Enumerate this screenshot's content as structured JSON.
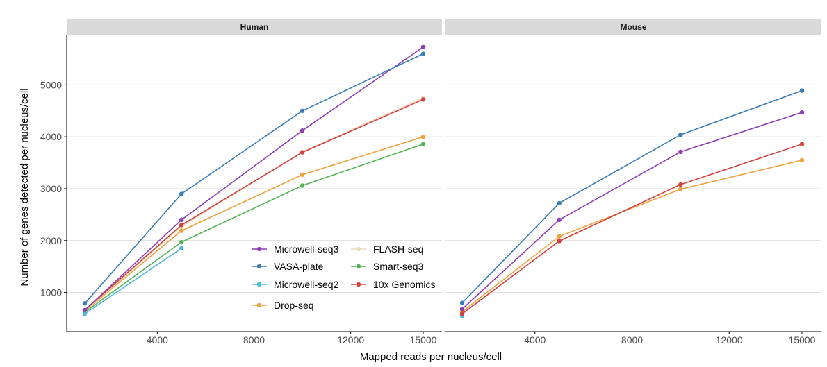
{
  "chart_data": {
    "type": "line",
    "xlabel": "Mapped reads per nucleus/cell",
    "ylabel": "Number of genes detected per nucleus/cell",
    "x_ticks": [
      4000,
      8000,
      12000,
      15000
    ],
    "y_ticks": [
      1000,
      2000,
      3000,
      4000,
      5000
    ],
    "xlim": [
      0,
      16000
    ],
    "ylim": [
      300,
      5950
    ],
    "grid": "horizontal",
    "legend": {
      "placement": "inside-left-panel",
      "columns": [
        [
          "Microwell-seq3",
          "VASA-plate",
          "Microwell-seq2",
          "Drop-seq"
        ],
        [
          "FLASH-seq",
          "Smart-seq3",
          "10x Genomics"
        ]
      ]
    },
    "colors": {
      "Microwell-seq3": "#8e3fb4",
      "VASA-plate": "#3a7db7",
      "Microwell-seq2": "#4db8d8",
      "Drop-seq": "#eda13a",
      "FLASH-seq": "#ecdcc0",
      "Smart-seq3": "#55b356",
      "10x Genomics": "#d3403e"
    },
    "panels": [
      {
        "title": "Human",
        "series": [
          {
            "name": "Smart-seq3",
            "x": [
              1000,
              5000,
              10000,
              15000
            ],
            "y": [
              620,
              1970,
              3060,
              3860
            ]
          },
          {
            "name": "Drop-seq",
            "x": [
              1000,
              5000,
              10000,
              15000
            ],
            "y": [
              640,
              2190,
              3270,
              4000
            ]
          },
          {
            "name": "FLASH-seq",
            "x": [
              1000,
              5000,
              10000,
              15000
            ],
            "y": [
              650,
              2270,
              3710,
              4750
            ]
          },
          {
            "name": "10x Genomics",
            "x": [
              1000,
              5000,
              10000,
              15000
            ],
            "y": [
              660,
              2300,
              3700,
              4720
            ]
          },
          {
            "name": "Microwell-seq2",
            "x": [
              1000,
              5000
            ],
            "y": [
              590,
              1850
            ]
          },
          {
            "name": "Microwell-seq3",
            "x": [
              1000,
              5000,
              10000,
              15000
            ],
            "y": [
              660,
              2400,
              4120,
              5730
            ]
          },
          {
            "name": "VASA-plate",
            "x": [
              1000,
              5000,
              10000,
              15000
            ],
            "y": [
              790,
              2900,
              4500,
              5600
            ]
          }
        ]
      },
      {
        "title": "Mouse",
        "series": [
          {
            "name": "Drop-seq",
            "x": [
              1000,
              5000,
              10000,
              15000
            ],
            "y": [
              630,
              2080,
              2990,
              3550
            ]
          },
          {
            "name": "Microwell-seq2",
            "x": [
              1000
            ],
            "y": [
              550
            ]
          },
          {
            "name": "10x Genomics",
            "x": [
              1000,
              5000,
              10000,
              15000
            ],
            "y": [
              590,
              1990,
              3080,
              3860
            ]
          },
          {
            "name": "Microwell-seq3",
            "x": [
              1000,
              5000,
              10000,
              15000
            ],
            "y": [
              680,
              2400,
              3710,
              4470
            ]
          },
          {
            "name": "VASA-plate",
            "x": [
              1000,
              5000,
              10000,
              15000
            ],
            "y": [
              800,
              2720,
              4040,
              4890
            ]
          }
        ]
      }
    ]
  }
}
